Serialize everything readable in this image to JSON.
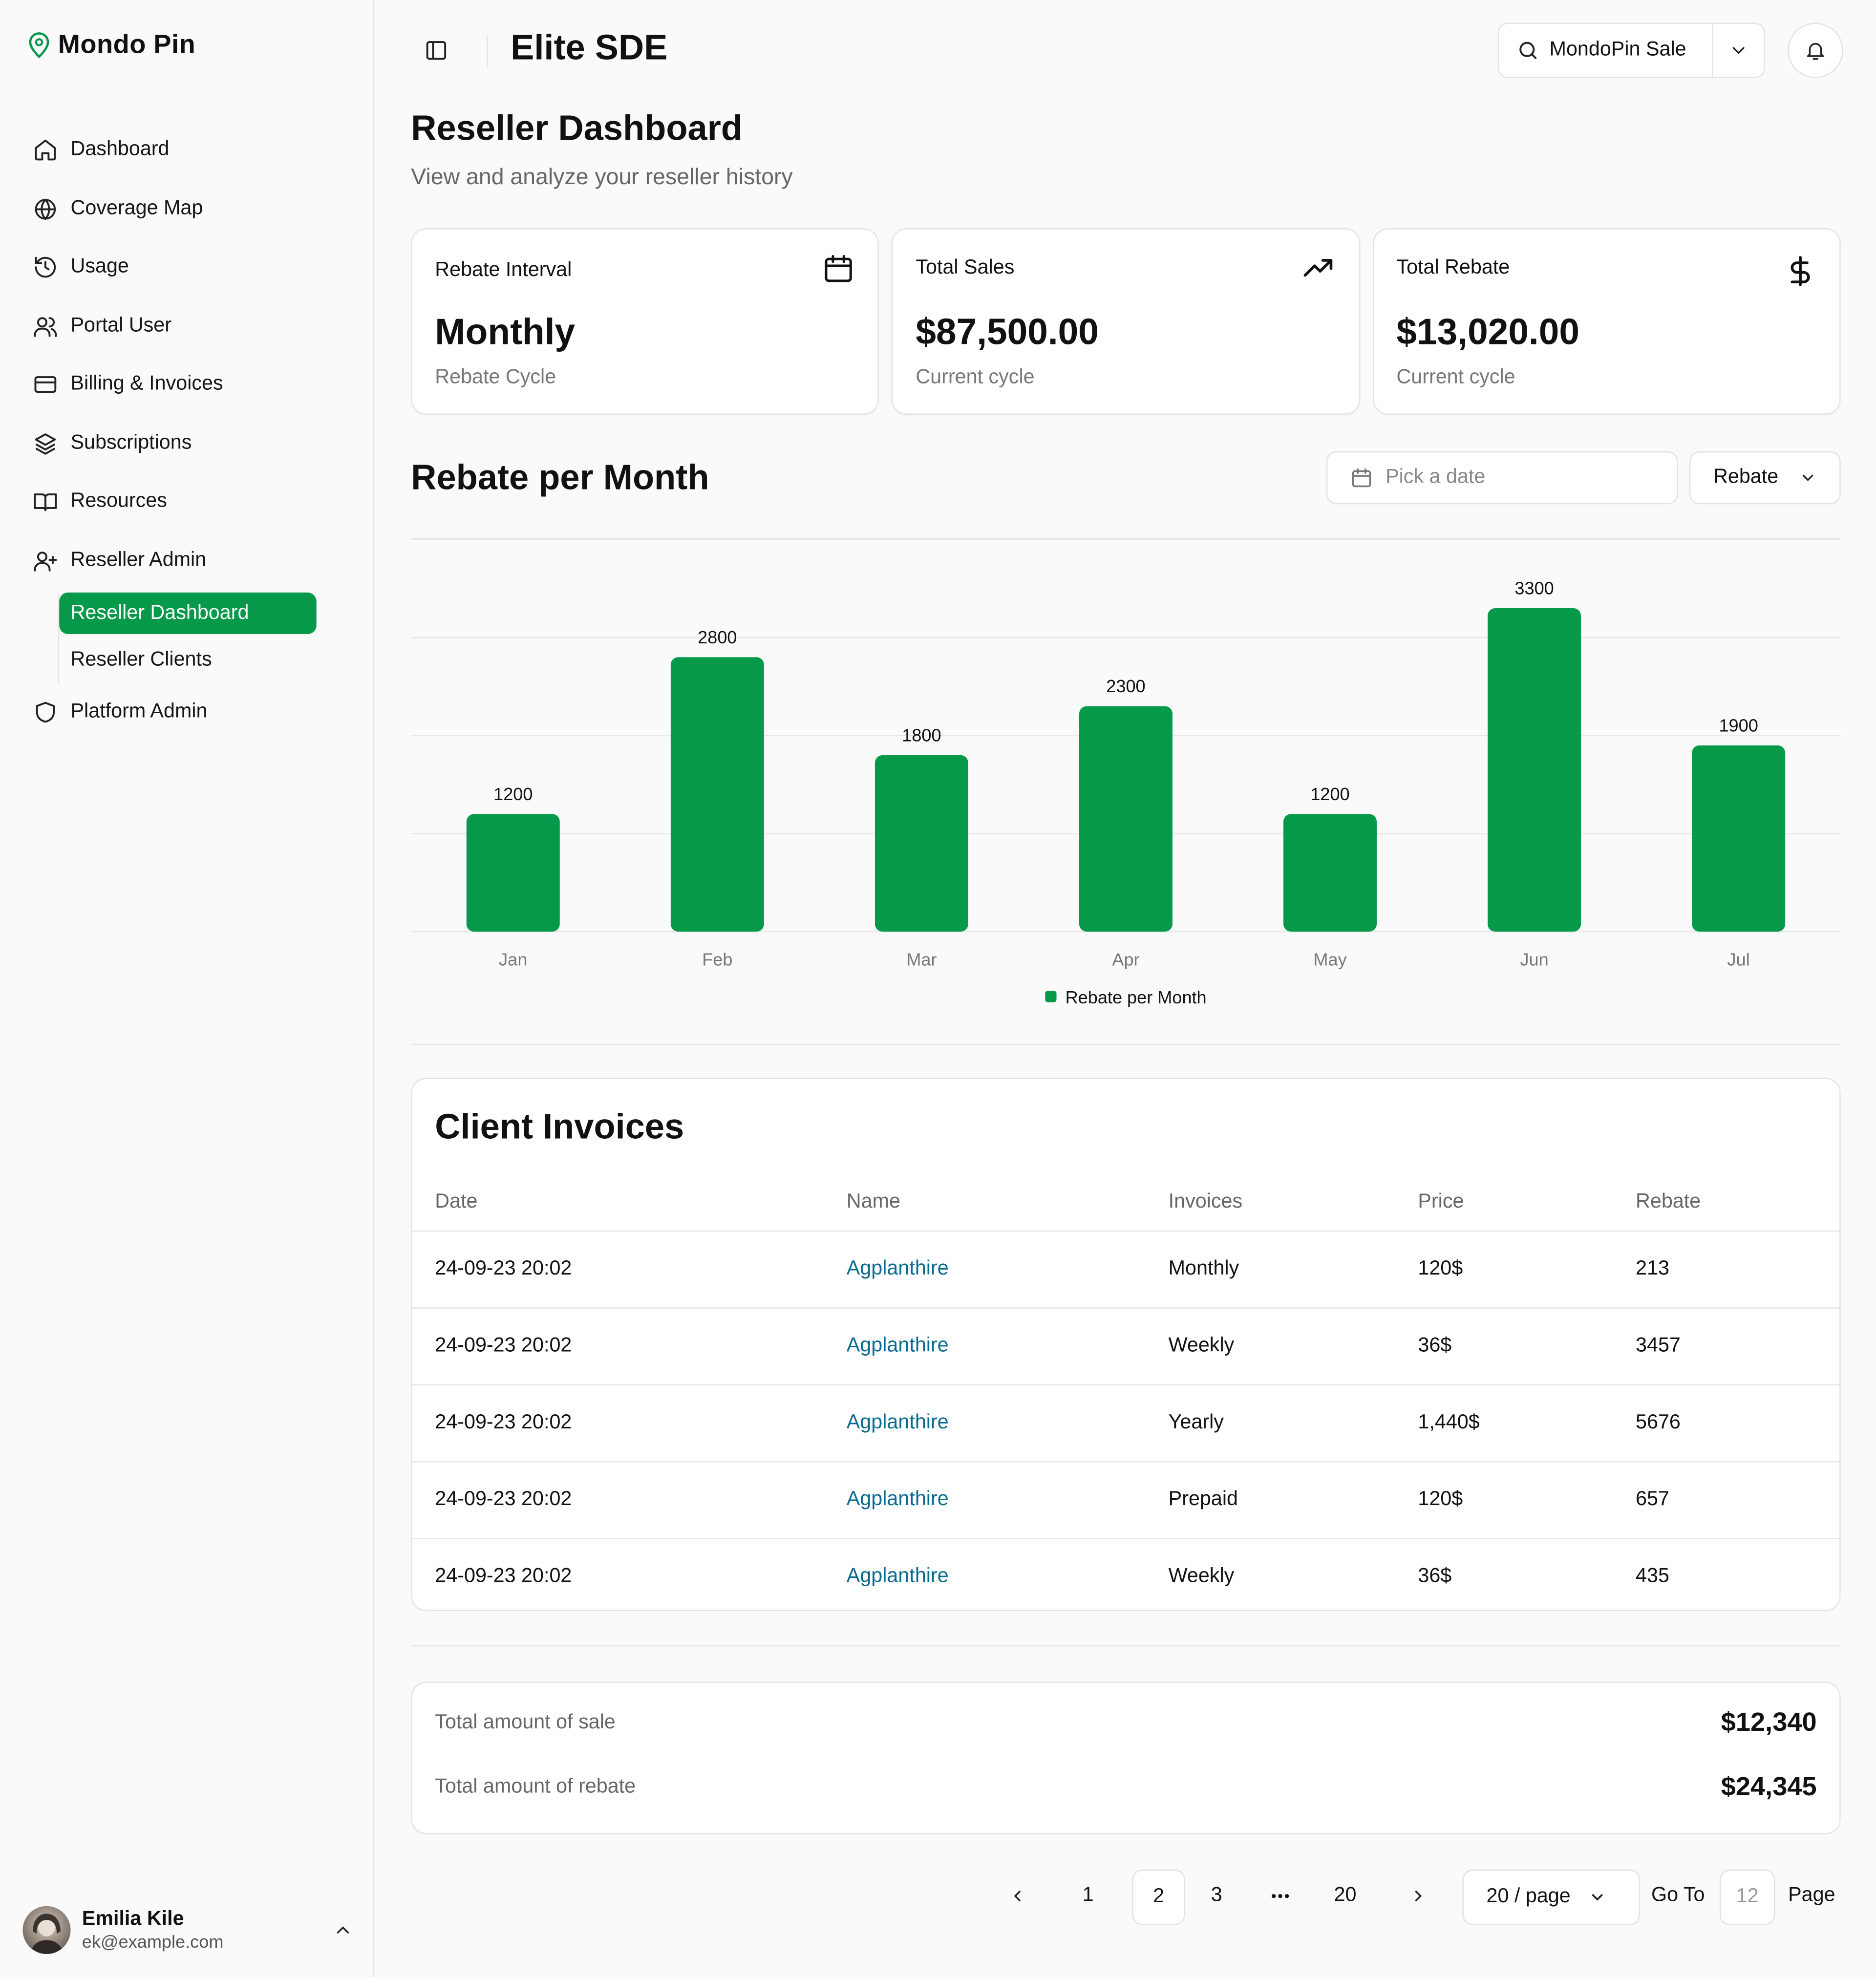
{
  "brand": {
    "name": "Mondo Pin"
  },
  "sidebar": {
    "items": [
      {
        "label": "Dashboard",
        "icon": "home-icon"
      },
      {
        "label": "Coverage Map",
        "icon": "globe-icon"
      },
      {
        "label": "Usage",
        "icon": "history-icon"
      },
      {
        "label": "Portal User",
        "icon": "users-icon"
      },
      {
        "label": "Billing & Invoices",
        "icon": "credit-card-icon"
      },
      {
        "label": "Subscriptions",
        "icon": "layers-icon"
      },
      {
        "label": "Resources",
        "icon": "book-icon"
      },
      {
        "label": "Reseller Admin",
        "icon": "user-plus-icon"
      }
    ],
    "sub_items": [
      {
        "label": "Reseller Dashboard",
        "active": true
      },
      {
        "label": "Reseller Clients",
        "active": false
      }
    ],
    "platform_admin": {
      "label": "Platform Admin",
      "icon": "shield-icon"
    },
    "user": {
      "name": "Emilia Kile",
      "email": "ek@example.com"
    }
  },
  "header": {
    "title": "Elite SDE",
    "account_select": "MondoPin Sale"
  },
  "page": {
    "title": "Reseller Dashboard",
    "subtitle": "View and analyze your reseller history"
  },
  "cards": [
    {
      "label": "Rebate Interval",
      "value": "Monthly",
      "note": "Rebate Cycle",
      "icon": "calendar-icon"
    },
    {
      "label": "Total Sales",
      "value": "$87,500.00",
      "note": "Current cycle",
      "icon": "trending-up-icon"
    },
    {
      "label": "Total Rebate",
      "value": "$13,020.00",
      "note": "Current cycle",
      "icon": "dollar-icon"
    }
  ],
  "chart_section": {
    "title": "Rebate per Month",
    "date_placeholder": "Pick a date",
    "metric_select": "Rebate"
  },
  "chart_data": {
    "type": "bar",
    "categories": [
      "Jan",
      "Feb",
      "Mar",
      "Apr",
      "May",
      "Jun",
      "Jul"
    ],
    "series": [
      {
        "name": "Rebate per Month",
        "values": [
          1200,
          2800,
          1800,
          2300,
          1200,
          3300,
          1900
        ]
      }
    ],
    "ylim": [
      0,
      4000
    ],
    "grid": true,
    "legend": "bottom-center",
    "color": "#07994a"
  },
  "invoices": {
    "title": "Client Invoices",
    "columns": [
      "Date",
      "Name",
      "Invoices",
      "Price",
      "Rebate"
    ],
    "rows": [
      [
        "24-09-23 20:02",
        "Agplanthire",
        "Monthly",
        "120$",
        "213"
      ],
      [
        "24-09-23 20:02",
        "Agplanthire",
        "Weekly",
        "36$",
        "3457"
      ],
      [
        "24-09-23 20:02",
        "Agplanthire",
        "Yearly",
        "1,440$",
        "5676"
      ],
      [
        "24-09-23 20:02",
        "Agplanthire",
        "Prepaid",
        "120$",
        "657"
      ],
      [
        "24-09-23 20:02",
        "Agplanthire",
        "Weekly",
        "36$",
        "435"
      ]
    ]
  },
  "totals": {
    "sale_label": "Total amount of sale",
    "sale_value": "$12,340",
    "rebate_label": "Total amount of rebate",
    "rebate_value": "$24,345"
  },
  "pagination": {
    "pages": [
      "1",
      "2",
      "3",
      "•••",
      "20"
    ],
    "current": "2",
    "page_size": "20 / page",
    "goto_label": "Go To",
    "goto_value": "12",
    "page_label": "Page"
  }
}
